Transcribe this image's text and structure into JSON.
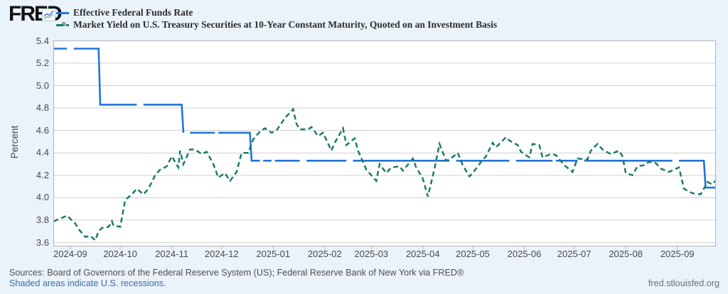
{
  "header": {
    "logo_text": "FRED",
    "logo_reg_mark": "®",
    "legend": [
      {
        "label": "Effective Federal Funds Rate",
        "color": "#2374d8",
        "style": "solid"
      },
      {
        "label": "Market Yield on U.S. Treasury Securities at 10-Year Constant Maturity, Quoted on an Investment Basis",
        "color": "#1c7c66",
        "style": "dashed"
      }
    ]
  },
  "footer": {
    "sources": "Sources: Board of Governors of the Federal Reserve System (US); Federal Reserve Bank of New York via FRED®",
    "recession_note": "Shaded areas indicate U.S. recessions.",
    "site": "fred.stlouisfed.org"
  },
  "chart_data": {
    "type": "line",
    "title": "",
    "xlabel": "",
    "ylabel": "Percent",
    "ylim": [
      3.6,
      5.4
    ],
    "yticks": [
      "5.4",
      "5.2",
      "5.0",
      "4.8",
      "4.6",
      "4.4",
      "4.2",
      "4.0",
      "3.8",
      "3.6"
    ],
    "xticks": [
      "2024-09",
      "2024-10",
      "2024-11",
      "2024-12",
      "2025-01",
      "2025-02",
      "2025-03",
      "2025-04",
      "2025-05",
      "2025-06",
      "2025-07",
      "2025-08",
      "2025-09"
    ],
    "x_range": [
      "2024-08-22",
      "2025-09-24"
    ],
    "grid": true,
    "legend_position": "top-left",
    "plot_bg": "#ffffff",
    "grid_color": "#d0d0d0",
    "border_color": "#b3b3b3",
    "series": [
      {
        "name": "Effective Federal Funds Rate",
        "color": "#2374d8",
        "style": "solid",
        "width": 2.6,
        "segments": [
          [
            [
              "2024-08-22",
              5.33
            ],
            [
              "2024-08-30",
              5.33
            ]
          ],
          [
            [
              "2024-09-03",
              5.33
            ],
            [
              "2024-09-18",
              5.33
            ],
            [
              "2024-09-19",
              4.83
            ],
            [
              "2024-10-11",
              4.83
            ]
          ],
          [
            [
              "2024-10-15",
              4.83
            ],
            [
              "2024-11-07",
              4.83
            ],
            [
              "2024-11-08",
              4.58
            ]
          ],
          [
            [
              "2024-11-12",
              4.58
            ],
            [
              "2024-11-27",
              4.58
            ]
          ],
          [
            [
              "2024-11-29",
              4.58
            ],
            [
              "2024-12-18",
              4.58
            ],
            [
              "2024-12-19",
              4.33
            ],
            [
              "2024-12-24",
              4.33
            ]
          ],
          [
            [
              "2024-12-26",
              4.33
            ],
            [
              "2024-12-31",
              4.33
            ]
          ],
          [
            [
              "2025-01-02",
              4.33
            ],
            [
              "2025-01-17",
              4.33
            ]
          ],
          [
            [
              "2025-01-21",
              4.33
            ],
            [
              "2025-02-14",
              4.33
            ]
          ],
          [
            [
              "2025-02-18",
              4.33
            ],
            [
              "2025-04-17",
              4.33
            ]
          ],
          [
            [
              "2025-04-21",
              4.33
            ],
            [
              "2025-05-23",
              4.33
            ]
          ],
          [
            [
              "2025-05-27",
              4.33
            ],
            [
              "2025-06-18",
              4.33
            ]
          ],
          [
            [
              "2025-06-20",
              4.33
            ],
            [
              "2025-07-03",
              4.33
            ]
          ],
          [
            [
              "2025-07-07",
              4.33
            ],
            [
              "2025-08-29",
              4.33
            ]
          ],
          [
            [
              "2025-09-02",
              4.33
            ],
            [
              "2025-09-17",
              4.33
            ],
            [
              "2025-09-18",
              4.09
            ],
            [
              "2025-09-24",
              4.09
            ]
          ]
        ]
      },
      {
        "name": "Market Yield on U.S. Treasury Securities at 10-Year Constant Maturity, Quoted on an Investment Basis",
        "color": "#1c7c66",
        "style": "dashed",
        "width": 2.5,
        "segments": [
          [
            [
              "2024-08-22",
              3.79
            ],
            [
              "2024-08-27",
              3.82
            ],
            [
              "2024-08-30",
              3.84
            ],
            [
              "2024-09-04",
              3.77
            ],
            [
              "2024-09-06",
              3.72
            ],
            [
              "2024-09-10",
              3.65
            ],
            [
              "2024-09-13",
              3.66
            ],
            [
              "2024-09-16",
              3.62
            ],
            [
              "2024-09-18",
              3.7
            ],
            [
              "2024-09-20",
              3.73
            ],
            [
              "2024-09-24",
              3.74
            ],
            [
              "2024-09-26",
              3.79
            ],
            [
              "2024-09-27",
              3.75
            ],
            [
              "2024-10-01",
              3.74
            ],
            [
              "2024-10-04",
              3.98
            ],
            [
              "2024-10-08",
              4.03
            ],
            [
              "2024-10-11",
              4.08
            ],
            [
              "2024-10-15",
              4.03
            ],
            [
              "2024-10-18",
              4.08
            ],
            [
              "2024-10-22",
              4.2
            ],
            [
              "2024-10-25",
              4.25
            ],
            [
              "2024-10-29",
              4.28
            ],
            [
              "2024-11-01",
              4.37
            ],
            [
              "2024-11-05",
              4.27
            ],
            [
              "2024-11-06",
              4.42
            ],
            [
              "2024-11-08",
              4.3
            ],
            [
              "2024-11-12",
              4.43
            ],
            [
              "2024-11-15",
              4.43
            ],
            [
              "2024-11-19",
              4.39
            ],
            [
              "2024-11-22",
              4.41
            ],
            [
              "2024-11-26",
              4.3
            ],
            [
              "2024-11-29",
              4.18
            ],
            [
              "2024-12-03",
              4.22
            ],
            [
              "2024-12-06",
              4.15
            ],
            [
              "2024-12-10",
              4.23
            ],
            [
              "2024-12-13",
              4.4
            ],
            [
              "2024-12-17",
              4.4
            ],
            [
              "2024-12-20",
              4.52
            ],
            [
              "2024-12-24",
              4.59
            ],
            [
              "2024-12-27",
              4.62
            ],
            [
              "2024-12-31",
              4.58
            ],
            [
              "2025-01-03",
              4.6
            ],
            [
              "2025-01-08",
              4.71
            ],
            [
              "2025-01-13",
              4.79
            ],
            [
              "2025-01-15",
              4.66
            ],
            [
              "2025-01-17",
              4.61
            ],
            [
              "2025-01-22",
              4.61
            ],
            [
              "2025-01-24",
              4.63
            ],
            [
              "2025-01-28",
              4.55
            ],
            [
              "2025-01-31",
              4.58
            ],
            [
              "2025-02-05",
              4.42
            ],
            [
              "2025-02-07",
              4.49
            ],
            [
              "2025-02-12",
              4.62
            ],
            [
              "2025-02-14",
              4.47
            ],
            [
              "2025-02-19",
              4.53
            ],
            [
              "2025-02-21",
              4.42
            ],
            [
              "2025-02-26",
              4.25
            ],
            [
              "2025-03-04",
              4.15
            ],
            [
              "2025-03-06",
              4.3
            ],
            [
              "2025-03-10",
              4.22
            ],
            [
              "2025-03-13",
              4.27
            ],
            [
              "2025-03-18",
              4.28
            ],
            [
              "2025-03-20",
              4.24
            ],
            [
              "2025-03-26",
              4.35
            ],
            [
              "2025-03-28",
              4.27
            ],
            [
              "2025-04-01",
              4.17
            ],
            [
              "2025-04-04",
              4.01
            ],
            [
              "2025-04-08",
              4.26
            ],
            [
              "2025-04-11",
              4.48
            ],
            [
              "2025-04-15",
              4.33
            ],
            [
              "2025-04-17",
              4.34
            ],
            [
              "2025-04-22",
              4.4
            ],
            [
              "2025-04-25",
              4.29
            ],
            [
              "2025-04-29",
              4.19
            ],
            [
              "2025-05-01",
              4.22
            ],
            [
              "2025-05-06",
              4.32
            ],
            [
              "2025-05-09",
              4.37
            ],
            [
              "2025-05-13",
              4.49
            ],
            [
              "2025-05-15",
              4.45
            ],
            [
              "2025-05-21",
              4.54
            ],
            [
              "2025-05-23",
              4.51
            ],
            [
              "2025-05-28",
              4.47
            ],
            [
              "2025-05-30",
              4.41
            ],
            [
              "2025-06-04",
              4.36
            ],
            [
              "2025-06-06",
              4.48
            ],
            [
              "2025-06-10",
              4.47
            ],
            [
              "2025-06-12",
              4.36
            ],
            [
              "2025-06-17",
              4.39
            ],
            [
              "2025-06-20",
              4.38
            ],
            [
              "2025-06-25",
              4.29
            ],
            [
              "2025-06-30",
              4.23
            ],
            [
              "2025-07-03",
              4.35
            ],
            [
              "2025-07-09",
              4.34
            ],
            [
              "2025-07-11",
              4.42
            ],
            [
              "2025-07-15",
              4.48
            ],
            [
              "2025-07-18",
              4.43
            ],
            [
              "2025-07-23",
              4.39
            ],
            [
              "2025-07-28",
              4.42
            ],
            [
              "2025-07-30",
              4.37
            ],
            [
              "2025-08-01",
              4.22
            ],
            [
              "2025-08-05",
              4.2
            ],
            [
              "2025-08-08",
              4.28
            ],
            [
              "2025-08-12",
              4.29
            ],
            [
              "2025-08-15",
              4.32
            ],
            [
              "2025-08-19",
              4.31
            ],
            [
              "2025-08-22",
              4.26
            ],
            [
              "2025-08-27",
              4.23
            ],
            [
              "2025-09-02",
              4.27
            ],
            [
              "2025-09-05",
              4.08
            ],
            [
              "2025-09-10",
              4.04
            ],
            [
              "2025-09-15",
              4.03
            ],
            [
              "2025-09-17",
              4.08
            ],
            [
              "2025-09-19",
              4.14
            ],
            [
              "2025-09-22",
              4.12
            ],
            [
              "2025-09-24",
              4.15
            ]
          ]
        ]
      }
    ]
  }
}
